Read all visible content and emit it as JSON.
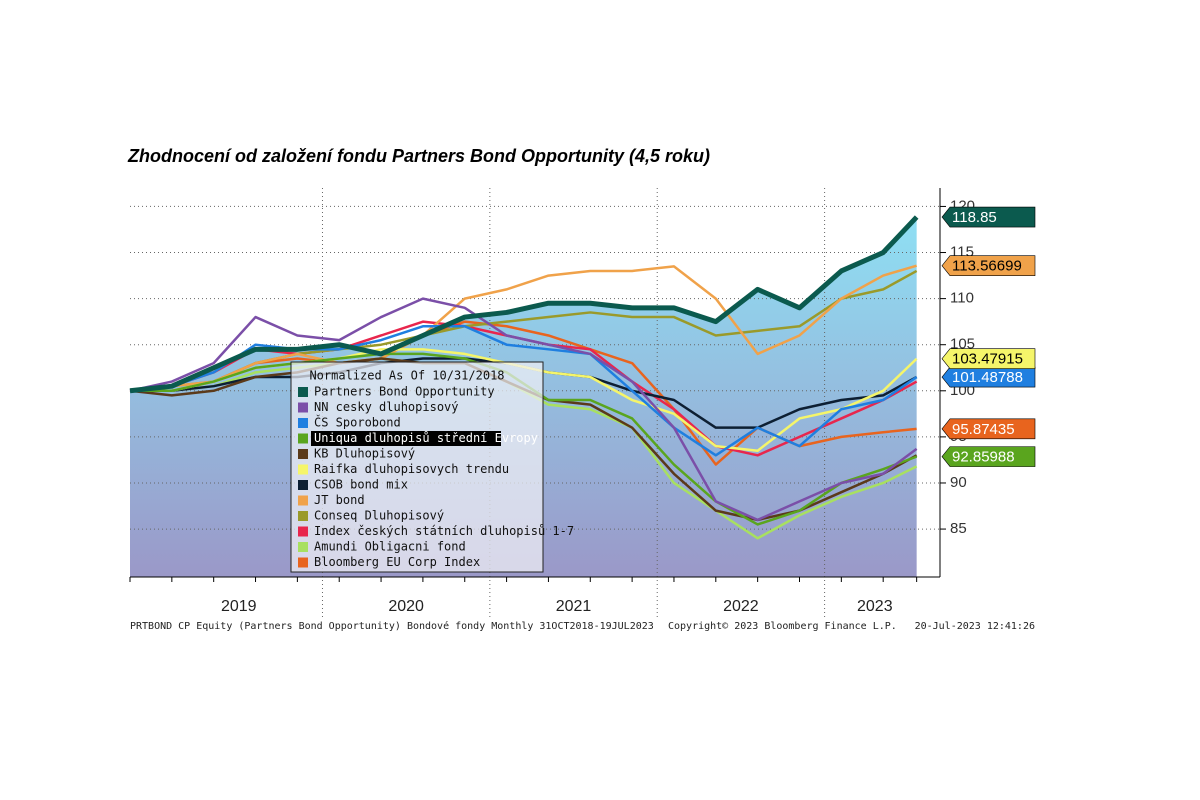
{
  "chart_data": {
    "type": "line",
    "title": "Zhodnocení od založení fondu Partners Bond Opportunity (4,5 roku)",
    "legend_title": "Normalized As Of 10/31/2018",
    "x": [
      2018.85,
      2019.1,
      2019.35,
      2019.6,
      2019.85,
      2020.1,
      2020.35,
      2020.6,
      2020.85,
      2021.1,
      2021.35,
      2021.6,
      2021.85,
      2022.1,
      2022.35,
      2022.6,
      2022.85,
      2023.1,
      2023.35,
      2023.55
    ],
    "xlim": [
      2018.85,
      2023.57
    ],
    "xticks": [
      {
        "value": 2019.5,
        "label": "2019"
      },
      {
        "value": 2020.5,
        "label": "2020"
      },
      {
        "value": 2021.5,
        "label": "2021"
      },
      {
        "value": 2022.5,
        "label": "2022"
      },
      {
        "value": 2023.3,
        "label": "2023"
      }
    ],
    "xdividers": [
      2020,
      2021,
      2022,
      2023
    ],
    "ylim": [
      79.8,
      122
    ],
    "yticks": [
      85,
      90,
      95,
      100,
      105,
      110,
      115,
      120
    ],
    "grid": true,
    "highlight": "Uniqua dluhopisů střední Evropy",
    "series": [
      {
        "name": "Partners Bond Opportunity",
        "color": "#0b5a4e",
        "width": 5,
        "fill": true,
        "values": [
          100,
          100.5,
          102.5,
          104.5,
          104.5,
          105,
          104,
          106,
          108,
          108.5,
          109.5,
          109.5,
          109,
          109,
          107.5,
          111,
          109,
          113,
          115,
          118.85
        ],
        "end_label": "118.85"
      },
      {
        "name": "NN cesky dluhopisový",
        "color": "#7b4fa8",
        "values": [
          100,
          101,
          103,
          108,
          106,
          105.5,
          108,
          110,
          109,
          106,
          105,
          104,
          101,
          96,
          88,
          86,
          88,
          90,
          91,
          93.7
        ]
      },
      {
        "name": "ČS Sporobond",
        "color": "#1f7fe0",
        "values": [
          100,
          100.5,
          102,
          105,
          104.5,
          104.5,
          105.5,
          107,
          107,
          105,
          104.5,
          104,
          100,
          96,
          93,
          96,
          94,
          98,
          99,
          101.48788
        ],
        "end_label": "101.48788"
      },
      {
        "name": "Uniqua dluhopisů střední Evropy",
        "color": "#5aa51e",
        "values": [
          100,
          100,
          101,
          102.5,
          103,
          103.5,
          104,
          104,
          103.5,
          102,
          99,
          99,
          97,
          92,
          88,
          85.5,
          87,
          90,
          91.5,
          92.85988
        ],
        "end_label": "92.85988"
      },
      {
        "name": "KB Dluhopisový",
        "color": "#5b3a1a",
        "values": [
          100,
          99.5,
          100,
          101.5,
          102,
          103,
          103.5,
          103,
          103,
          101,
          99,
          98.5,
          96,
          91,
          87,
          86,
          87,
          89,
          91,
          93
        ]
      },
      {
        "name": "Raifka dluhopisovych trendu",
        "color": "#f5f56a",
        "values": [
          100,
          100,
          101,
          102.5,
          103,
          103.5,
          104.5,
          104.5,
          104,
          103,
          102,
          101.5,
          99,
          97.5,
          94,
          93.5,
          97,
          98,
          100,
          103.47915
        ],
        "end_label": "103.47915"
      },
      {
        "name": "CSOB bond mix",
        "color": "#0d1f33",
        "values": [
          100,
          100,
          100.5,
          101.5,
          101.5,
          102,
          103,
          103.5,
          103.5,
          103,
          102,
          101.5,
          100,
          99,
          96,
          96,
          98,
          99,
          99.5,
          101.5
        ]
      },
      {
        "name": "JT bond",
        "color": "#f0a24a",
        "values": [
          100,
          100.5,
          101,
          103,
          104,
          103,
          103.5,
          106,
          110,
          111,
          112.5,
          113,
          113,
          113.5,
          110,
          104,
          106,
          110,
          112.5,
          113.56699
        ],
        "end_label": "113.56699"
      },
      {
        "name": "Conseq Dluhopisový",
        "color": "#9a9a2a",
        "values": [
          100,
          100.5,
          101,
          103,
          104,
          104.5,
          105,
          106,
          107,
          107.5,
          108,
          108.5,
          108,
          108,
          106,
          106.5,
          107,
          110,
          111,
          113
        ]
      },
      {
        "name": "Index českých státních dluhopisů 1-7",
        "color": "#e8264d",
        "values": [
          100,
          100.5,
          102,
          104.5,
          104,
          104.5,
          106,
          107.5,
          107,
          106,
          105,
          104.5,
          101,
          98,
          94,
          93,
          95,
          97,
          99,
          101
        ]
      },
      {
        "name": "Amundi Obligacni fond",
        "color": "#a8e060",
        "values": [
          100,
          100,
          100.5,
          102,
          102.5,
          103,
          103.5,
          103,
          103,
          101,
          98.5,
          98,
          96,
          90,
          87,
          84,
          86.5,
          88.5,
          90,
          91.8
        ]
      },
      {
        "name": "Bloomberg EU Corp Index",
        "color": "#e8641e",
        "values": [
          100,
          100,
          101,
          103,
          103.5,
          103,
          103.5,
          106,
          107.5,
          107,
          106,
          104.5,
          103,
          98,
          92,
          96,
          94,
          95,
          95.5,
          95.87435
        ],
        "end_label": "95.87435"
      }
    ],
    "footer_left": "PRTBOND CP Equity (Partners Bond Opportunity) Bondové fondy  Monthly 31OCT2018-19JUL2023",
    "footer_mid": "Copyright© 2023 Bloomberg Finance L.P.",
    "footer_right": "20-Jul-2023 12:41:26"
  }
}
